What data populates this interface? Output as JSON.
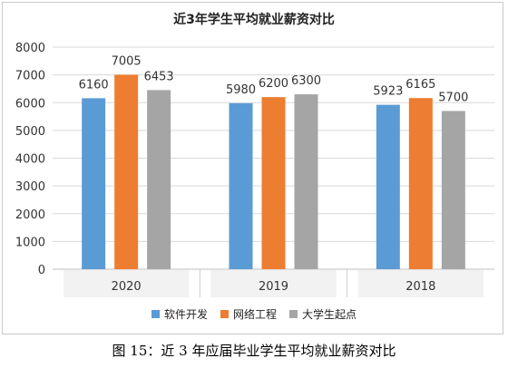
{
  "chart_data": {
    "type": "bar",
    "title": "近3年学生平均就业薪资对比",
    "categories": [
      "2020",
      "2019",
      "2018"
    ],
    "series": [
      {
        "name": "软件开发",
        "values": [
          6160,
          5980,
          5923
        ],
        "color": "#5b9bd5"
      },
      {
        "name": "网络工程",
        "values": [
          7005,
          6200,
          6165
        ],
        "color": "#ed7d31"
      },
      {
        "name": "大学生起点",
        "values": [
          6453,
          6300,
          5700
        ],
        "color": "#a5a5a5"
      }
    ],
    "ylim": [
      0,
      8000
    ],
    "yticks": [
      "0",
      "1000",
      "2000",
      "3000",
      "4000",
      "5000",
      "6000",
      "7000",
      "8000"
    ],
    "grid": true,
    "legend": "bottom"
  },
  "caption": "图 15：近 3 年应届毕业学生平均就业薪资对比"
}
